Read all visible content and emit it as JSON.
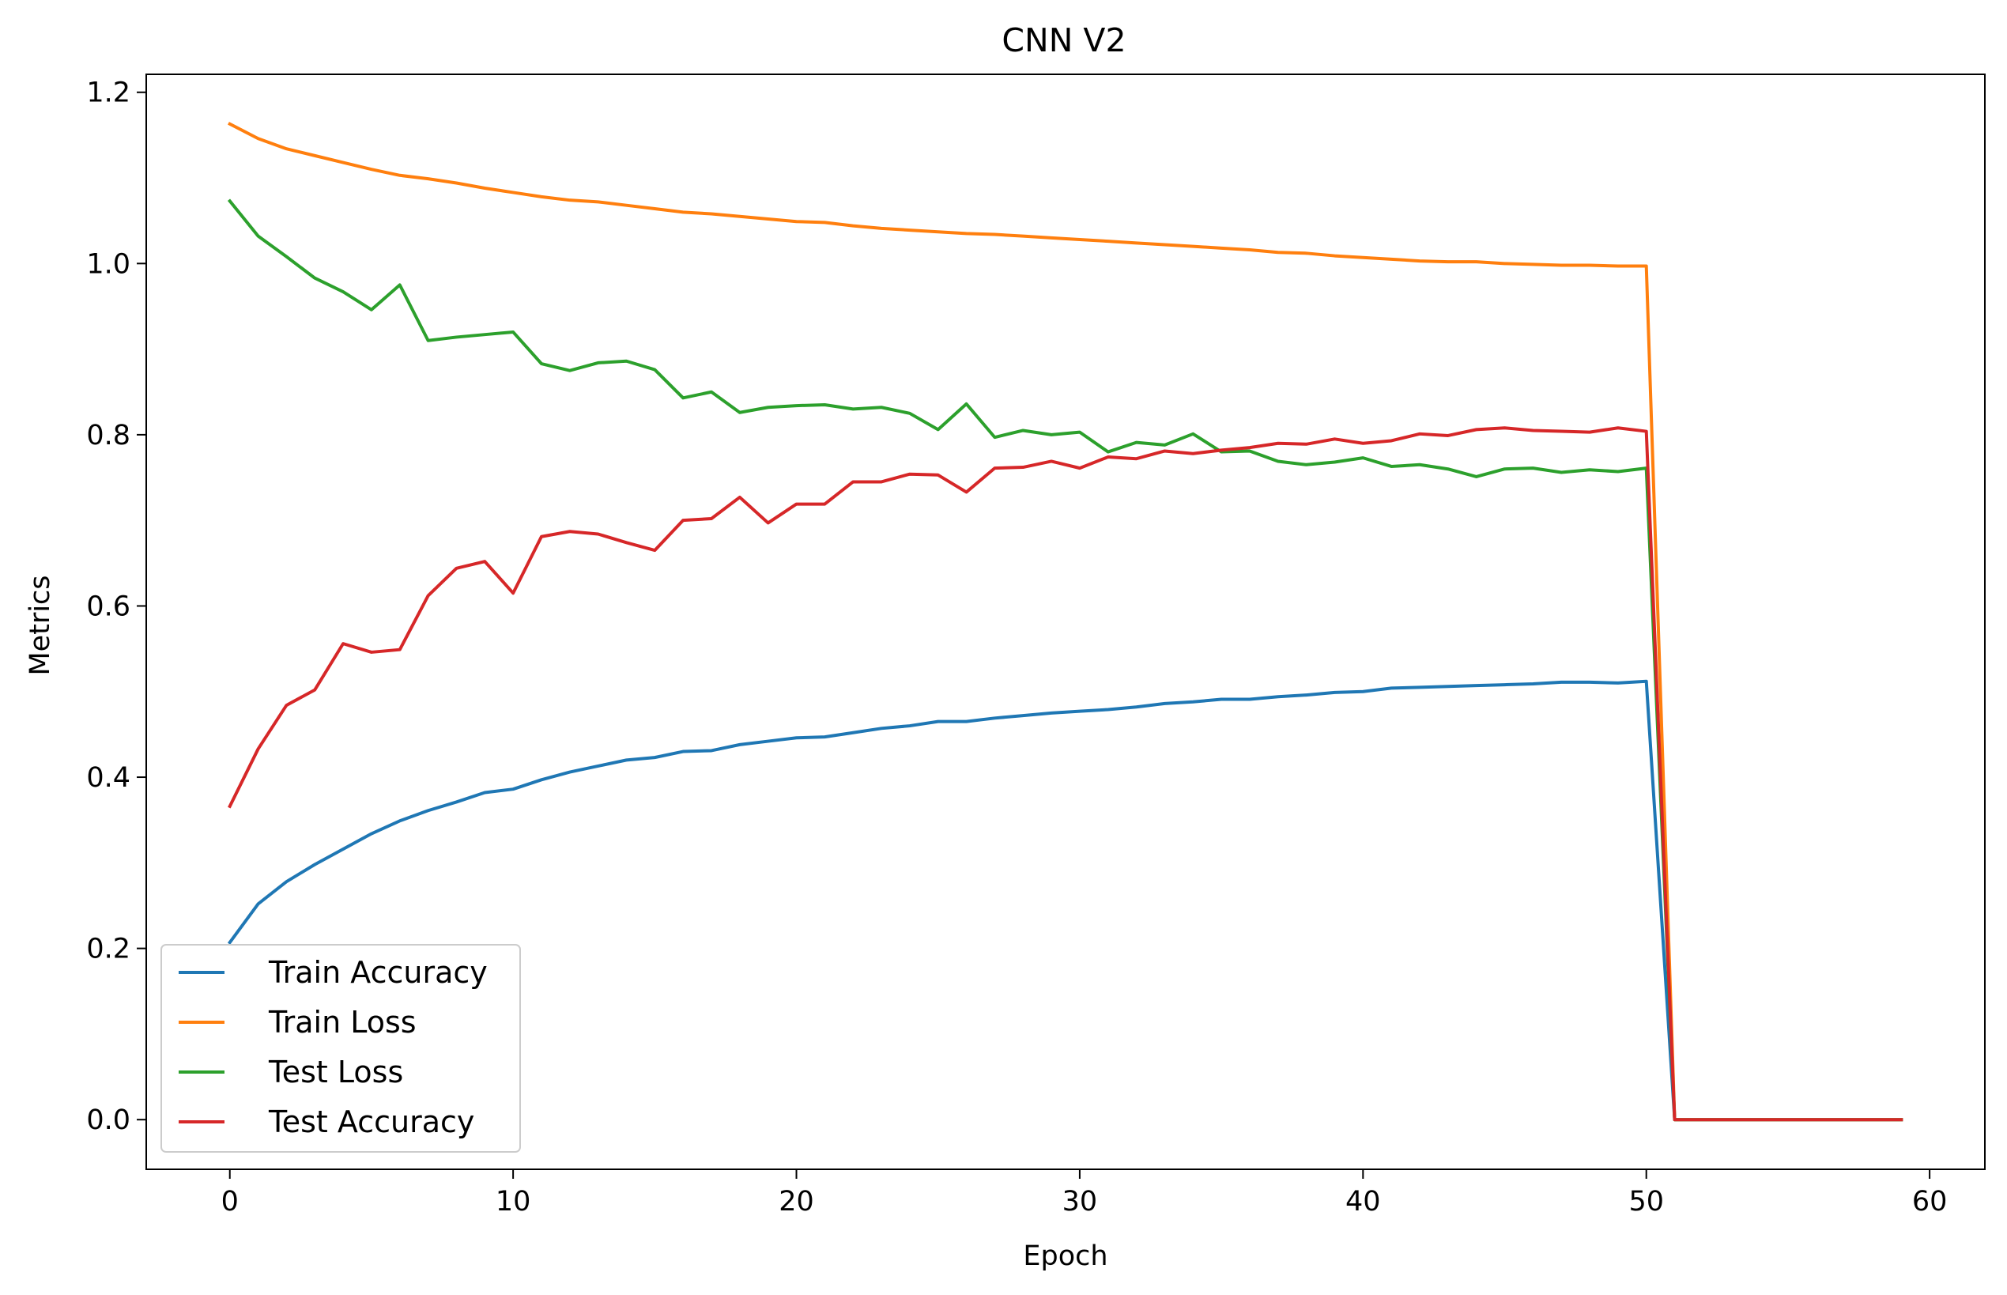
{
  "chart_data": {
    "type": "line",
    "title": "CNN V2",
    "xlabel": "Epoch",
    "ylabel": "Metrics",
    "xlim": [
      -2.95,
      61.95
    ],
    "ylim": [
      -0.058,
      1.221
    ],
    "xticks": [
      0,
      10,
      20,
      30,
      40,
      50,
      60
    ],
    "xtick_labels": [
      "0",
      "10",
      "20",
      "30",
      "40",
      "50",
      "60"
    ],
    "yticks": [
      0.0,
      0.2,
      0.4,
      0.6,
      0.8,
      1.0,
      1.2
    ],
    "ytick_labels": [
      "0.0",
      "0.2",
      "0.4",
      "0.6",
      "0.8",
      "1.0",
      "1.2"
    ],
    "grid": false,
    "legend_position": "lower-left",
    "x": [
      0,
      1,
      2,
      3,
      4,
      5,
      6,
      7,
      8,
      9,
      10,
      11,
      12,
      13,
      14,
      15,
      16,
      17,
      18,
      19,
      20,
      21,
      22,
      23,
      24,
      25,
      26,
      27,
      28,
      29,
      30,
      31,
      32,
      33,
      34,
      35,
      36,
      37,
      38,
      39,
      40,
      41,
      42,
      43,
      44,
      45,
      46,
      47,
      48,
      49,
      50,
      51,
      52,
      53,
      54,
      55,
      56,
      57,
      58,
      59
    ],
    "series": [
      {
        "name": "Train Accuracy",
        "color": "#1f77b4",
        "values": [
          0.207,
          0.252,
          0.278,
          0.298,
          0.316,
          0.334,
          0.349,
          0.361,
          0.371,
          0.382,
          0.386,
          0.397,
          0.406,
          0.413,
          0.42,
          0.423,
          0.43,
          0.431,
          0.438,
          0.442,
          0.446,
          0.447,
          0.452,
          0.457,
          0.46,
          0.465,
          0.465,
          0.469,
          0.472,
          0.475,
          0.477,
          0.479,
          0.482,
          0.486,
          0.488,
          0.491,
          0.491,
          0.494,
          0.496,
          0.499,
          0.5,
          0.504,
          0.505,
          0.506,
          0.507,
          0.508,
          0.509,
          0.511,
          0.511,
          0.51,
          0.512,
          0,
          0,
          0,
          0,
          0,
          0,
          0,
          0,
          0
        ]
      },
      {
        "name": "Train Loss",
        "color": "#ff7f0e",
        "values": [
          1.163,
          1.146,
          1.134,
          1.126,
          1.118,
          1.11,
          1.103,
          1.099,
          1.094,
          1.088,
          1.083,
          1.078,
          1.074,
          1.072,
          1.068,
          1.064,
          1.06,
          1.058,
          1.055,
          1.052,
          1.049,
          1.048,
          1.044,
          1.041,
          1.039,
          1.037,
          1.035,
          1.034,
          1.032,
          1.03,
          1.028,
          1.026,
          1.024,
          1.022,
          1.02,
          1.018,
          1.016,
          1.013,
          1.012,
          1.009,
          1.007,
          1.005,
          1.003,
          1.002,
          1.002,
          1.0,
          0.999,
          0.998,
          0.998,
          0.997,
          0.997,
          0,
          0,
          0,
          0,
          0,
          0,
          0,
          0,
          0
        ]
      },
      {
        "name": "Test Loss",
        "color": "#2ca02c",
        "values": [
          1.073,
          1.032,
          1.008,
          0.983,
          0.967,
          0.946,
          0.975,
          0.91,
          0.914,
          0.917,
          0.92,
          0.883,
          0.875,
          0.884,
          0.886,
          0.876,
          0.843,
          0.85,
          0.826,
          0.832,
          0.834,
          0.835,
          0.83,
          0.832,
          0.825,
          0.806,
          0.836,
          0.797,
          0.805,
          0.8,
          0.803,
          0.78,
          0.791,
          0.788,
          0.801,
          0.78,
          0.781,
          0.769,
          0.765,
          0.768,
          0.773,
          0.763,
          0.765,
          0.76,
          0.751,
          0.76,
          0.761,
          0.756,
          0.759,
          0.757,
          0.761,
          0,
          0,
          0,
          0,
          0,
          0,
          0,
          0,
          0
        ]
      },
      {
        "name": "Test Accuracy",
        "color": "#d62728",
        "values": [
          0.366,
          0.433,
          0.484,
          0.502,
          0.556,
          0.546,
          0.549,
          0.612,
          0.644,
          0.652,
          0.615,
          0.681,
          0.687,
          0.684,
          0.674,
          0.665,
          0.7,
          0.702,
          0.727,
          0.697,
          0.719,
          0.719,
          0.745,
          0.745,
          0.754,
          0.753,
          0.733,
          0.761,
          0.762,
          0.769,
          0.761,
          0.774,
          0.772,
          0.781,
          0.778,
          0.782,
          0.785,
          0.79,
          0.789,
          0.795,
          0.79,
          0.793,
          0.801,
          0.799,
          0.806,
          0.808,
          0.805,
          0.804,
          0.803,
          0.808,
          0.804,
          0,
          0,
          0,
          0,
          0,
          0,
          0,
          0,
          0
        ]
      }
    ]
  }
}
